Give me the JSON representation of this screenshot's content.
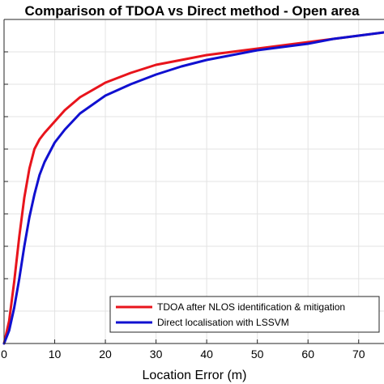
{
  "chart_data": {
    "type": "line",
    "title": "Comparison of TDOA vs Direct method - Open area",
    "xlabel": "Location Error (m)",
    "ylabel": "",
    "xlim": [
      0,
      75
    ],
    "ylim": [
      0,
      1
    ],
    "x_ticks": [
      0,
      10,
      20,
      30,
      40,
      50,
      60,
      70
    ],
    "y_ticks": [
      0,
      0.1,
      0.2,
      0.3,
      0.4,
      0.5,
      0.6,
      0.7,
      0.8,
      0.9,
      1
    ],
    "grid": true,
    "legend_position": "bottom-right",
    "series": [
      {
        "name": "TDOA after NLOS identification & mitigation",
        "color": "#e8141c",
        "x": [
          0,
          1,
          2,
          3,
          4,
          5,
          6,
          7,
          8,
          10,
          12,
          15,
          20,
          25,
          30,
          35,
          40,
          45,
          50,
          55,
          60,
          65,
          70,
          75
        ],
        "y": [
          0,
          0.07,
          0.19,
          0.33,
          0.45,
          0.54,
          0.6,
          0.63,
          0.65,
          0.685,
          0.72,
          0.76,
          0.805,
          0.835,
          0.86,
          0.875,
          0.89,
          0.9,
          0.91,
          0.92,
          0.93,
          0.94,
          0.95,
          0.96
        ]
      },
      {
        "name": "Direct localisation with LSSVM",
        "color": "#1010d0",
        "x": [
          0,
          1,
          2,
          3,
          4,
          5,
          6,
          7,
          8,
          10,
          12,
          15,
          20,
          25,
          30,
          35,
          40,
          45,
          50,
          55,
          60,
          65,
          70,
          75
        ],
        "y": [
          0,
          0.04,
          0.11,
          0.2,
          0.3,
          0.39,
          0.46,
          0.52,
          0.56,
          0.62,
          0.66,
          0.71,
          0.765,
          0.8,
          0.83,
          0.855,
          0.875,
          0.89,
          0.905,
          0.915,
          0.925,
          0.94,
          0.95,
          0.96
        ]
      }
    ]
  }
}
